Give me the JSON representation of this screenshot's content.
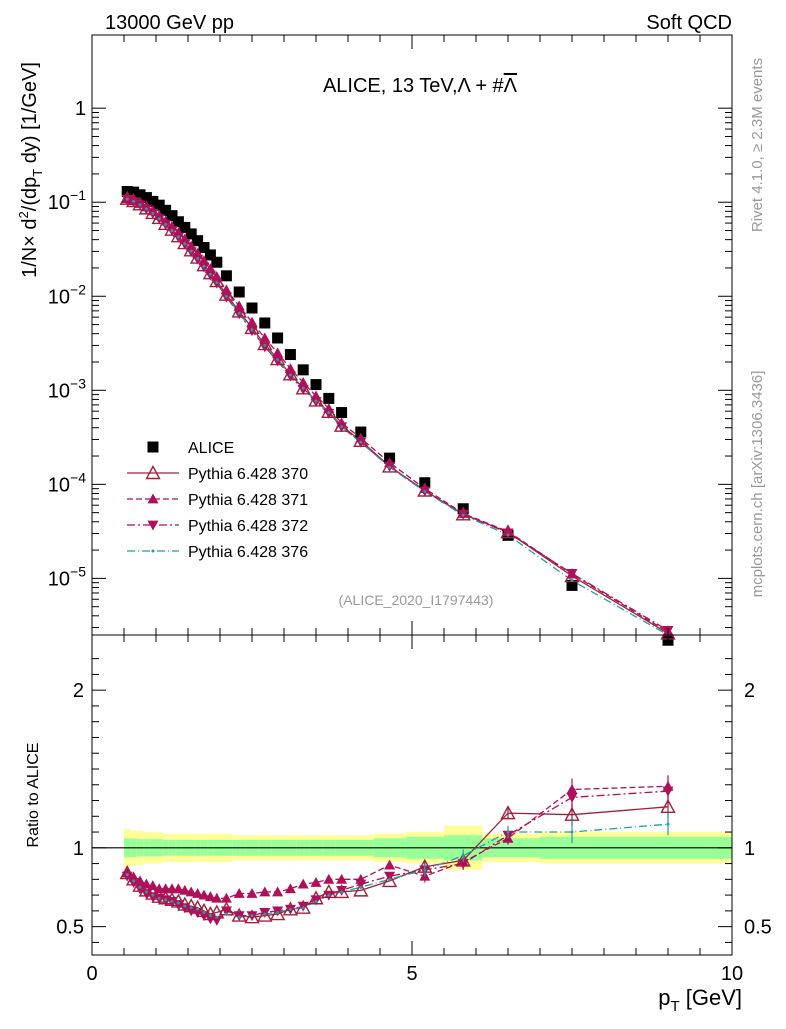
{
  "header": {
    "left_title": "13000 GeV pp",
    "right_title": "Soft QCD"
  },
  "side_labels": {
    "rivet": "Rivet 4.1.0, ≥ 2.3M events",
    "mcplots": "mcplots.cern.ch [arXiv:1306.3436]"
  },
  "chart_data": [
    {
      "type": "scatter",
      "panel": "main",
      "title": "ALICE, 13 TeV,Λ + #Λ̅",
      "title_main": "ALICE, 13 TeV,",
      "title_symbol": "Λ + #",
      "title_bar": "Λ",
      "ylabel_main": "1/N× d",
      "ylabel_sup": "2",
      "ylabel_mid": "/(dp",
      "ylabel_sub": "T",
      "ylabel_end": " dy) [1/GeV]",
      "yscale": "log",
      "ylim": [
        2.5e-06,
        6
      ],
      "xlim": [
        0,
        10
      ],
      "y_ticks": [
        {
          "base": "10",
          "exp": "−5",
          "value": 1e-05
        },
        {
          "base": "10",
          "exp": "−4",
          "value": 0.0001
        },
        {
          "base": "10",
          "exp": "−3",
          "value": 0.001
        },
        {
          "base": "10",
          "exp": "−2",
          "value": 0.01
        },
        {
          "base": "10",
          "exp": "−1",
          "value": 0.1
        },
        {
          "base": "1",
          "exp": "",
          "value": 1
        }
      ],
      "watermark": "(ALICE_2020_I1797443)",
      "legend_position": "lower-left",
      "x": [
        0.55,
        0.65,
        0.75,
        0.85,
        0.95,
        1.05,
        1.15,
        1.25,
        1.35,
        1.45,
        1.55,
        1.65,
        1.75,
        1.85,
        1.95,
        2.1,
        2.3,
        2.5,
        2.7,
        2.9,
        3.1,
        3.3,
        3.5,
        3.7,
        3.9,
        4.2,
        4.65,
        5.2,
        5.8,
        6.5,
        7.5,
        9.0
      ],
      "series": [
        {
          "name": "ALICE",
          "marker": "square",
          "color": "#000000",
          "dash": "",
          "values": [
            0.13,
            0.128,
            0.12,
            0.112,
            0.102,
            0.093,
            0.082,
            0.072,
            0.062,
            0.054,
            0.046,
            0.039,
            0.033,
            0.0275,
            0.023,
            0.0165,
            0.0111,
            0.0075,
            0.0052,
            0.0036,
            0.0024,
            0.00165,
            0.00115,
            0.00082,
            0.00058,
            0.00036,
            0.00019,
            0.000104,
            5.5e-05,
            2.87e-05,
            8.42e-06,
            2.2e-06
          ]
        },
        {
          "name": "Pythia 6.428 370",
          "marker": "triangle-open",
          "color": "#a0203a",
          "dash": "",
          "values": [
            0.109,
            0.103,
            0.095,
            0.086,
            0.077,
            0.068,
            0.059,
            0.051,
            0.0435,
            0.0368,
            0.0308,
            0.0258,
            0.0214,
            0.0176,
            0.0145,
            0.0104,
            0.0069,
            0.0046,
            0.0031,
            0.00215,
            0.00148,
            0.00105,
            0.00078,
            0.00059,
            0.00042,
            0.00029,
            0.000155,
            8.6e-05,
            4.8e-05,
            3.1e-05,
            1.06e-05,
            2.6e-06
          ]
        },
        {
          "name": "Pythia 6.428 371",
          "marker": "triangle-up",
          "color": "#b0105a",
          "dash": "6,3",
          "values": [
            0.109,
            0.104,
            0.097,
            0.089,
            0.081,
            0.072,
            0.063,
            0.0555,
            0.0475,
            0.0405,
            0.0342,
            0.0287,
            0.0239,
            0.0197,
            0.0162,
            0.0117,
            0.0079,
            0.0053,
            0.0036,
            0.0025,
            0.0017,
            0.00121,
            0.00087,
            0.00064,
            0.00045,
            0.00031,
            0.00017,
            9e-05,
            4.9e-05,
            3.15e-05,
            1.11e-05,
            2.7e-06
          ]
        },
        {
          "name": "Pythia 6.428 372",
          "marker": "triangle-down",
          "color": "#b0105a",
          "dash": "8,3,2,3",
          "values": [
            0.107,
            0.101,
            0.094,
            0.085,
            0.076,
            0.067,
            0.058,
            0.05,
            0.0425,
            0.0358,
            0.0298,
            0.0248,
            0.0205,
            0.0168,
            0.0138,
            0.0098,
            0.0065,
            0.0043,
            0.0029,
            0.00205,
            0.00142,
            0.00102,
            0.00076,
            0.00057,
            0.00041,
            0.00028,
            0.000155,
            8.5e-05,
            4.8e-05,
            3.05e-05,
            1.13e-05,
            2.8e-06
          ]
        },
        {
          "name": "Pythia 6.428 376",
          "marker": "dot",
          "color": "#20a0a0",
          "dash": "8,3,1,3",
          "values": [
            0.108,
            0.102,
            0.094,
            0.085,
            0.076,
            0.067,
            0.058,
            0.05,
            0.043,
            0.0362,
            0.0302,
            0.0252,
            0.0208,
            0.0171,
            0.014,
            0.01,
            0.0066,
            0.0044,
            0.003,
            0.00211,
            0.00146,
            0.00105,
            0.00077,
            0.00058,
            0.00041,
            0.00028,
            0.000152,
            8.4e-05,
            4.7e-05,
            2.9e-05,
            9.5e-06,
            2.5e-06
          ]
        }
      ]
    },
    {
      "type": "scatter",
      "panel": "ratio",
      "ylabel": "Ratio to ALICE",
      "xlabel_main": "p",
      "xlabel_sub": "T",
      "xlabel_unit": " [GeV]",
      "ylim": [
        0.32,
        2.35
      ],
      "xlim": [
        0,
        10
      ],
      "x_ticks": [
        {
          "label": "0",
          "value": 0
        },
        {
          "label": "5",
          "value": 5
        },
        {
          "label": "10",
          "value": 10
        }
      ],
      "y_ticks": [
        {
          "label": "0.5",
          "value": 0.5
        },
        {
          "label": "1",
          "value": 1
        },
        {
          "label": "2",
          "value": 2
        }
      ],
      "band_edges": [
        0.5,
        0.6,
        0.7,
        0.8,
        0.9,
        1.0,
        1.1,
        1.2,
        1.3,
        1.4,
        1.5,
        1.6,
        1.7,
        1.8,
        1.9,
        2.0,
        2.2,
        2.4,
        2.6,
        2.8,
        3.0,
        3.2,
        3.4,
        3.6,
        3.8,
        4.0,
        4.4,
        4.9,
        5.5,
        6.1,
        7.0,
        8.0,
        10.0
      ],
      "band_stat": [
        0.06,
        0.06,
        0.055,
        0.055,
        0.055,
        0.055,
        0.05,
        0.05,
        0.05,
        0.05,
        0.05,
        0.05,
        0.05,
        0.05,
        0.05,
        0.05,
        0.05,
        0.05,
        0.05,
        0.05,
        0.05,
        0.05,
        0.05,
        0.05,
        0.05,
        0.05,
        0.06,
        0.07,
        0.08,
        0.06,
        0.07,
        0.07
      ],
      "band_total": [
        0.12,
        0.11,
        0.11,
        0.1,
        0.1,
        0.1,
        0.09,
        0.09,
        0.09,
        0.09,
        0.09,
        0.09,
        0.09,
        0.09,
        0.09,
        0.09,
        0.08,
        0.08,
        0.08,
        0.08,
        0.08,
        0.08,
        0.08,
        0.08,
        0.08,
        0.08,
        0.09,
        0.1,
        0.14,
        0.09,
        0.1,
        0.1
      ],
      "x": [
        0.55,
        0.65,
        0.75,
        0.85,
        0.95,
        1.05,
        1.15,
        1.25,
        1.35,
        1.45,
        1.55,
        1.65,
        1.75,
        1.85,
        1.95,
        2.1,
        2.3,
        2.5,
        2.7,
        2.9,
        3.1,
        3.3,
        3.5,
        3.7,
        3.9,
        4.2,
        4.65,
        5.2,
        5.8,
        6.5,
        7.5,
        9.0
      ],
      "series": [
        {
          "name": "Pythia 6.428 370",
          "marker": "triangle-open",
          "color": "#a0203a",
          "dash": "",
          "values": [
            0.84,
            0.8,
            0.76,
            0.73,
            0.71,
            0.69,
            0.68,
            0.67,
            0.66,
            0.64,
            0.63,
            0.62,
            0.6,
            0.58,
            0.59,
            0.61,
            0.57,
            0.56,
            0.57,
            0.58,
            0.61,
            0.62,
            0.68,
            0.72,
            0.72,
            0.73,
            0.79,
            0.88,
            0.92,
            1.22,
            1.21,
            1.26
          ]
        },
        {
          "name": "Pythia 6.428 371",
          "marker": "triangle-up",
          "color": "#b0105a",
          "dash": "6,3",
          "values": [
            0.84,
            0.81,
            0.79,
            0.77,
            0.76,
            0.74,
            0.74,
            0.74,
            0.74,
            0.73,
            0.72,
            0.71,
            0.7,
            0.69,
            0.68,
            0.68,
            0.71,
            0.71,
            0.72,
            0.72,
            0.74,
            0.77,
            0.78,
            0.8,
            0.8,
            0.8,
            0.89,
            0.82,
            0.91,
            1.06,
            1.37,
            1.39
          ]
        },
        {
          "name": "Pythia 6.428 372",
          "marker": "triangle-down",
          "color": "#b0105a",
          "dash": "8,3,2,3",
          "values": [
            0.82,
            0.78,
            0.74,
            0.71,
            0.69,
            0.68,
            0.67,
            0.66,
            0.64,
            0.62,
            0.6,
            0.59,
            0.57,
            0.55,
            0.54,
            0.6,
            0.57,
            0.57,
            0.59,
            0.6,
            0.61,
            0.63,
            0.67,
            0.7,
            0.73,
            0.77,
            0.82,
            0.86,
            0.9,
            1.08,
            1.32,
            1.36
          ]
        },
        {
          "name": "Pythia 6.428 376",
          "marker": "dot",
          "color": "#20a0a0",
          "dash": "8,3,1,3",
          "values": [
            0.83,
            0.79,
            0.75,
            0.72,
            0.7,
            0.68,
            0.67,
            0.66,
            0.65,
            0.63,
            0.62,
            0.61,
            0.59,
            0.57,
            0.56,
            0.58,
            0.56,
            0.57,
            0.58,
            0.59,
            0.61,
            0.62,
            0.66,
            0.7,
            0.72,
            0.75,
            0.8,
            0.86,
            0.95,
            1.1,
            1.1,
            1.15
          ]
        }
      ]
    }
  ]
}
